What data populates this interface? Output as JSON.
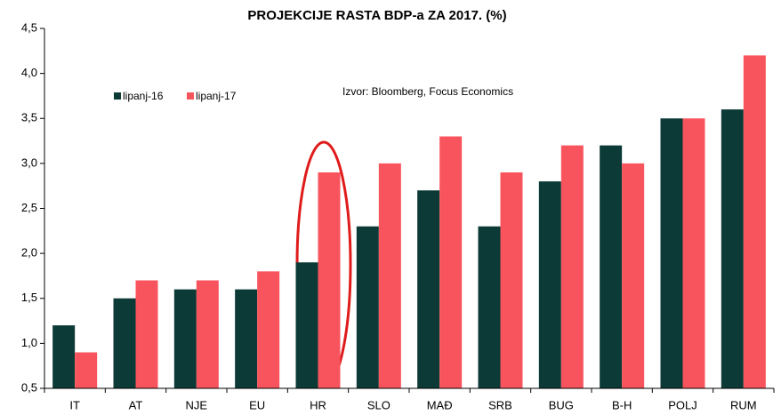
{
  "chart_data": {
    "type": "bar",
    "title": "PROJEKCIJE RASTA BDP-a ZA 2017.  (%)",
    "annotation": "Izvor: Bloomberg, Focus Economics",
    "categories": [
      "IT",
      "AT",
      "NJE",
      "EU",
      "HR",
      "SLO",
      "MAĐ",
      "SRB",
      "BUG",
      "B-H",
      "POLJ",
      "RUM"
    ],
    "series": [
      {
        "name": "lipanj-16",
        "color": "#0c3a36",
        "values": [
          1.2,
          1.5,
          1.6,
          1.6,
          1.9,
          2.3,
          2.7,
          2.3,
          2.8,
          3.2,
          3.5,
          3.6
        ]
      },
      {
        "name": "lipanj-17",
        "color": "#f8545d",
        "values": [
          0.9,
          1.7,
          1.7,
          1.8,
          2.9,
          3.0,
          3.3,
          2.9,
          3.2,
          3.0,
          3.5,
          4.2
        ]
      }
    ],
    "ylim": [
      0.5,
      4.5
    ],
    "yticks": [
      {
        "value": 0.5,
        "label": "0,5"
      },
      {
        "value": 1.0,
        "label": "1,0"
      },
      {
        "value": 1.5,
        "label": "1,5"
      },
      {
        "value": 2.0,
        "label": "2,0"
      },
      {
        "value": 2.5,
        "label": "2,5"
      },
      {
        "value": 3.0,
        "label": "3,0"
      },
      {
        "value": 3.5,
        "label": "3,5"
      },
      {
        "value": 4.0,
        "label": "4,0"
      },
      {
        "value": 4.5,
        "label": "4,5"
      }
    ],
    "grid": false,
    "legend": "upper left"
  }
}
